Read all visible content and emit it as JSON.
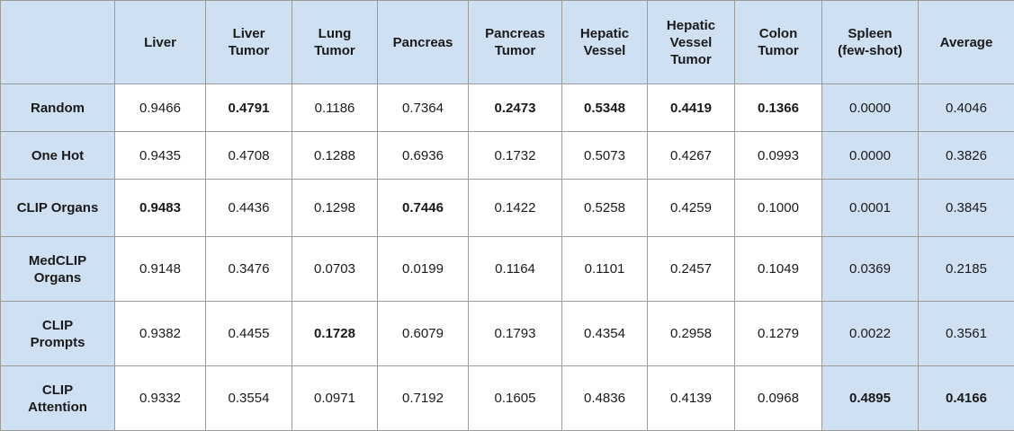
{
  "table": {
    "headers": [
      "",
      "Liver",
      "Liver Tumor",
      "Lung Tumor",
      "Pancreas",
      "Pancreas Tumor",
      "Hepatic Vessel",
      "Hepatic Vessel Tumor",
      "Colon Tumor",
      "Spleen (few-shot)",
      "Average"
    ],
    "rows": [
      {
        "label": "Random",
        "values": [
          "0.9466",
          "0.4791",
          "0.1186",
          "0.7364",
          "0.2473",
          "0.5348",
          "0.4419",
          "0.1366",
          "0.0000",
          "0.4046"
        ]
      },
      {
        "label": "One Hot",
        "values": [
          "0.9435",
          "0.4708",
          "0.1288",
          "0.6936",
          "0.1732",
          "0.5073",
          "0.4267",
          "0.0993",
          "0.0000",
          "0.3826"
        ]
      },
      {
        "label": "CLIP Organs",
        "values": [
          "0.9483",
          "0.4436",
          "0.1298",
          "0.7446",
          "0.1422",
          "0.5258",
          "0.4259",
          "0.1000",
          "0.0001",
          "0.3845"
        ]
      },
      {
        "label": "MedCLIP Organs",
        "values": [
          "0.9148",
          "0.3476",
          "0.0703",
          "0.0199",
          "0.1164",
          "0.1101",
          "0.2457",
          "0.1049",
          "0.0369",
          "0.2185"
        ]
      },
      {
        "label": "CLIP Prompts",
        "values": [
          "0.9382",
          "0.4455",
          "0.1728",
          "0.6079",
          "0.1793",
          "0.4354",
          "0.2958",
          "0.1279",
          "0.0022",
          "0.3561"
        ]
      },
      {
        "label": "CLIP Attention",
        "values": [
          "0.9332",
          "0.3554",
          "0.0971",
          "0.7192",
          "0.1605",
          "0.4836",
          "0.4139",
          "0.0968",
          "0.4895",
          "0.4166"
        ]
      }
    ]
  }
}
